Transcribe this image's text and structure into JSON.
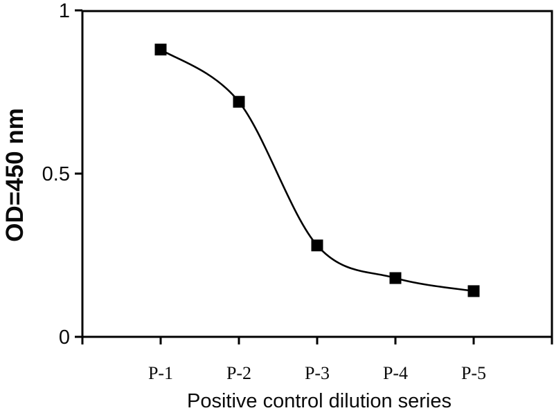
{
  "page": {
    "background": "#ffffff",
    "foreground": "#0a0a0a"
  },
  "chart_data": {
    "type": "line",
    "title": "",
    "xlabel": "Positive control dilution series",
    "ylabel": "OD=450 nm",
    "categories": [
      "P-1",
      "P-2",
      "P-3",
      "P-4",
      "P-5"
    ],
    "values": [
      0.88,
      0.72,
      0.28,
      0.18,
      0.14
    ],
    "series": [
      {
        "name": "Positive control dilution series",
        "values": [
          0.88,
          0.72,
          0.28,
          0.18,
          0.14
        ]
      }
    ],
    "ylim": [
      0,
      1
    ],
    "yticks": [
      0,
      0.5,
      1
    ],
    "ytick_labels": [
      "0",
      "0.5",
      "1"
    ],
    "xtick_labels": [
      "P-1",
      "P-2",
      "P-3",
      "P-4",
      "P-5"
    ],
    "grid": false,
    "legend": "none",
    "smooth": true,
    "marker": "filled-square",
    "line_color": "#000000",
    "marker_color": "#000000",
    "axis_color": "#000000"
  }
}
